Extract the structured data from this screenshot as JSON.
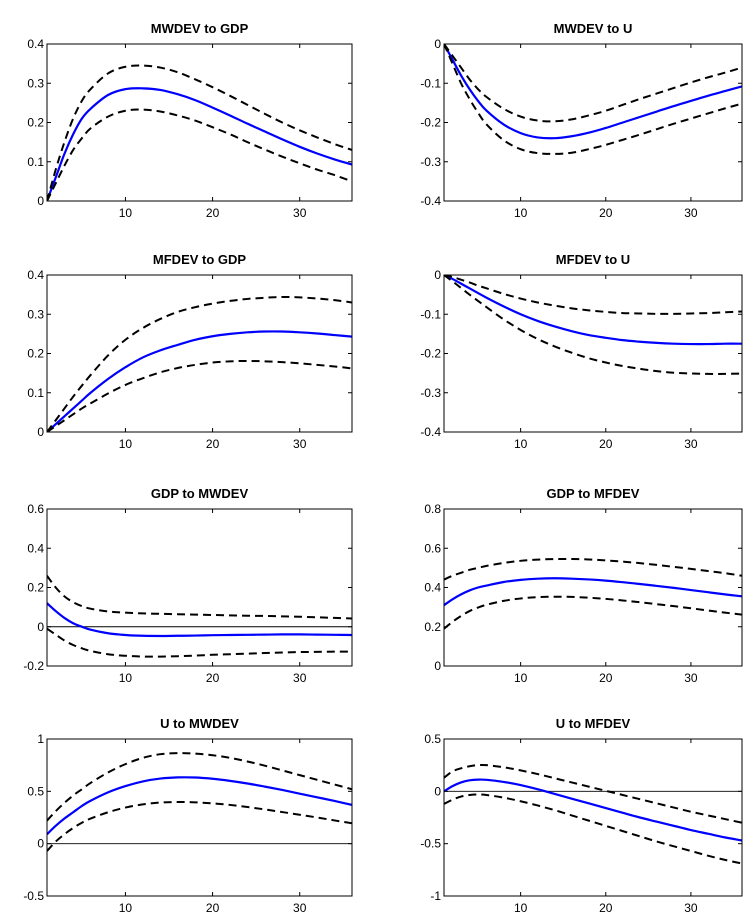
{
  "chart_data": [
    {
      "type": "line",
      "title": "MWDEV to GDP",
      "xlim": [
        1,
        36
      ],
      "ylim": [
        0,
        0.4
      ],
      "yticks": [
        0,
        0.1,
        0.2,
        0.3,
        0.4
      ],
      "yticklabels": [
        "0",
        "0.1",
        "0.2",
        "0.3",
        "0.4"
      ],
      "xticks": [
        10,
        20,
        30
      ],
      "xticklabels": [
        "10",
        "20",
        "30"
      ],
      "zero_line": false,
      "x": [
        1,
        2,
        3,
        4,
        5,
        6,
        8,
        10,
        12,
        14,
        16,
        18,
        20,
        22,
        24,
        26,
        28,
        30,
        32,
        34,
        36
      ],
      "series": [
        {
          "role": "estimate",
          "color": "#0000ff",
          "dash": false,
          "values": [
            0.0,
            0.06,
            0.12,
            0.17,
            0.21,
            0.235,
            0.27,
            0.285,
            0.287,
            0.283,
            0.272,
            0.257,
            0.238,
            0.218,
            0.197,
            0.177,
            0.157,
            0.138,
            0.121,
            0.106,
            0.093
          ]
        },
        {
          "role": "upper band",
          "color": "#000000",
          "dash": true,
          "values": [
            0.0,
            0.08,
            0.15,
            0.21,
            0.255,
            0.285,
            0.325,
            0.342,
            0.345,
            0.34,
            0.328,
            0.31,
            0.29,
            0.268,
            0.245,
            0.222,
            0.2,
            0.18,
            0.162,
            0.145,
            0.13
          ]
        },
        {
          "role": "lower band",
          "color": "#000000",
          "dash": true,
          "values": [
            0.0,
            0.045,
            0.09,
            0.13,
            0.16,
            0.185,
            0.215,
            0.23,
            0.233,
            0.228,
            0.218,
            0.205,
            0.188,
            0.17,
            0.15,
            0.131,
            0.113,
            0.096,
            0.08,
            0.066,
            0.05
          ]
        }
      ]
    },
    {
      "type": "line",
      "title": "MWDEV to U",
      "xlim": [
        1,
        36
      ],
      "ylim": [
        -0.4,
        0
      ],
      "yticks": [
        -0.4,
        -0.3,
        -0.2,
        -0.1,
        0
      ],
      "yticklabels": [
        "-0.4",
        "-0.3",
        "-0.2",
        "-0.1",
        "0"
      ],
      "xticks": [
        10,
        20,
        30
      ],
      "xticklabels": [
        "10",
        "20",
        "30"
      ],
      "zero_line": false,
      "x": [
        1,
        2,
        3,
        4,
        5,
        6,
        8,
        10,
        12,
        14,
        16,
        18,
        20,
        22,
        24,
        26,
        28,
        30,
        32,
        34,
        36
      ],
      "series": [
        {
          "role": "estimate",
          "color": "#0000ff",
          "dash": false,
          "values": [
            0.0,
            -0.04,
            -0.08,
            -0.115,
            -0.145,
            -0.17,
            -0.205,
            -0.227,
            -0.238,
            -0.24,
            -0.235,
            -0.226,
            -0.214,
            -0.2,
            -0.186,
            -0.172,
            -0.158,
            -0.145,
            -0.132,
            -0.12,
            -0.108
          ]
        },
        {
          "role": "upper band",
          "color": "#000000",
          "dash": true,
          "values": [
            0.0,
            -0.03,
            -0.06,
            -0.09,
            -0.115,
            -0.135,
            -0.165,
            -0.185,
            -0.195,
            -0.197,
            -0.192,
            -0.182,
            -0.17,
            -0.155,
            -0.14,
            -0.126,
            -0.112,
            -0.098,
            -0.085,
            -0.073,
            -0.06
          ]
        },
        {
          "role": "lower band",
          "color": "#000000",
          "dash": true,
          "values": [
            0.0,
            -0.05,
            -0.1,
            -0.14,
            -0.175,
            -0.205,
            -0.245,
            -0.268,
            -0.278,
            -0.28,
            -0.277,
            -0.268,
            -0.257,
            -0.244,
            -0.231,
            -0.217,
            -0.203,
            -0.19,
            -0.177,
            -0.164,
            -0.152
          ]
        }
      ]
    },
    {
      "type": "line",
      "title": "MFDEV to GDP",
      "xlim": [
        1,
        36
      ],
      "ylim": [
        0,
        0.4
      ],
      "yticks": [
        0,
        0.1,
        0.2,
        0.3,
        0.4
      ],
      "yticklabels": [
        "0",
        "0.1",
        "0.2",
        "0.3",
        "0.4"
      ],
      "xticks": [
        10,
        20,
        30
      ],
      "xticklabels": [
        "10",
        "20",
        "30"
      ],
      "zero_line": false,
      "x": [
        1,
        2,
        3,
        4,
        5,
        6,
        8,
        10,
        12,
        14,
        16,
        18,
        20,
        22,
        24,
        26,
        28,
        30,
        32,
        34,
        36
      ],
      "series": [
        {
          "role": "estimate",
          "color": "#0000ff",
          "dash": false,
          "values": [
            0.0,
            0.02,
            0.04,
            0.06,
            0.08,
            0.1,
            0.135,
            0.165,
            0.19,
            0.208,
            0.222,
            0.235,
            0.244,
            0.25,
            0.254,
            0.256,
            0.256,
            0.254,
            0.251,
            0.247,
            0.243
          ]
        },
        {
          "role": "upper band",
          "color": "#000000",
          "dash": true,
          "values": [
            0.0,
            0.03,
            0.06,
            0.09,
            0.118,
            0.145,
            0.195,
            0.235,
            0.265,
            0.288,
            0.306,
            0.318,
            0.327,
            0.334,
            0.339,
            0.342,
            0.344,
            0.343,
            0.34,
            0.336,
            0.33
          ]
        },
        {
          "role": "lower band",
          "color": "#000000",
          "dash": true,
          "values": [
            0.0,
            0.015,
            0.03,
            0.045,
            0.06,
            0.073,
            0.098,
            0.12,
            0.137,
            0.152,
            0.163,
            0.171,
            0.177,
            0.18,
            0.181,
            0.18,
            0.178,
            0.175,
            0.171,
            0.167,
            0.162
          ]
        }
      ]
    },
    {
      "type": "line",
      "title": "MFDEV to U",
      "xlim": [
        1,
        36
      ],
      "ylim": [
        -0.4,
        0
      ],
      "yticks": [
        -0.4,
        -0.3,
        -0.2,
        -0.1,
        0
      ],
      "yticklabels": [
        "-0.4",
        "-0.3",
        "-0.2",
        "-0.1",
        "0"
      ],
      "xticks": [
        10,
        20,
        30
      ],
      "xticklabels": [
        "10",
        "20",
        "30"
      ],
      "zero_line": false,
      "x": [
        1,
        2,
        3,
        4,
        5,
        6,
        8,
        10,
        12,
        14,
        16,
        18,
        20,
        22,
        24,
        26,
        28,
        30,
        32,
        34,
        36
      ],
      "series": [
        {
          "role": "estimate",
          "color": "#0000ff",
          "dash": false,
          "values": [
            0.0,
            -0.01,
            -0.022,
            -0.034,
            -0.046,
            -0.058,
            -0.08,
            -0.1,
            -0.117,
            -0.131,
            -0.143,
            -0.153,
            -0.16,
            -0.166,
            -0.17,
            -0.173,
            -0.175,
            -0.176,
            -0.176,
            -0.175,
            -0.175
          ]
        },
        {
          "role": "upper band",
          "color": "#000000",
          "dash": true,
          "values": [
            0.0,
            -0.005,
            -0.012,
            -0.019,
            -0.027,
            -0.034,
            -0.048,
            -0.06,
            -0.07,
            -0.078,
            -0.085,
            -0.09,
            -0.094,
            -0.097,
            -0.098,
            -0.099,
            -0.099,
            -0.098,
            -0.097,
            -0.095,
            -0.093
          ]
        },
        {
          "role": "lower band",
          "color": "#000000",
          "dash": true,
          "values": [
            0.0,
            -0.016,
            -0.033,
            -0.05,
            -0.066,
            -0.082,
            -0.113,
            -0.14,
            -0.163,
            -0.182,
            -0.198,
            -0.212,
            -0.223,
            -0.232,
            -0.239,
            -0.245,
            -0.249,
            -0.251,
            -0.252,
            -0.252,
            -0.251
          ]
        }
      ]
    },
    {
      "type": "line",
      "title": "GDP to MWDEV",
      "xlim": [
        1,
        36
      ],
      "ylim": [
        -0.2,
        0.6
      ],
      "yticks": [
        -0.2,
        0,
        0.2,
        0.4,
        0.6
      ],
      "yticklabels": [
        "-0.2",
        "0",
        "0.2",
        "0.4",
        "0.6"
      ],
      "xticks": [
        10,
        20,
        30
      ],
      "xticklabels": [
        "10",
        "20",
        "30"
      ],
      "zero_line": true,
      "x": [
        1,
        2,
        3,
        4,
        5,
        6,
        8,
        10,
        12,
        14,
        16,
        18,
        20,
        22,
        24,
        26,
        28,
        30,
        32,
        34,
        36
      ],
      "series": [
        {
          "role": "estimate",
          "color": "#0000ff",
          "dash": false,
          "values": [
            0.12,
            0.08,
            0.045,
            0.018,
            0.0,
            -0.015,
            -0.033,
            -0.042,
            -0.046,
            -0.047,
            -0.046,
            -0.045,
            -0.043,
            -0.042,
            -0.041,
            -0.04,
            -0.039,
            -0.039,
            -0.04,
            -0.041,
            -0.042
          ]
        },
        {
          "role": "upper band",
          "color": "#000000",
          "dash": true,
          "values": [
            0.26,
            0.2,
            0.155,
            0.125,
            0.105,
            0.092,
            0.078,
            0.072,
            0.068,
            0.066,
            0.064,
            0.062,
            0.06,
            0.058,
            0.056,
            0.055,
            0.053,
            0.051,
            0.048,
            0.045,
            0.042
          ]
        },
        {
          "role": "lower band",
          "color": "#000000",
          "dash": true,
          "values": [
            -0.01,
            -0.04,
            -0.07,
            -0.093,
            -0.11,
            -0.123,
            -0.14,
            -0.148,
            -0.152,
            -0.152,
            -0.15,
            -0.147,
            -0.143,
            -0.14,
            -0.137,
            -0.134,
            -0.131,
            -0.129,
            -0.128,
            -0.127,
            -0.127
          ]
        }
      ]
    },
    {
      "type": "line",
      "title": "GDP to MFDEV",
      "xlim": [
        1,
        36
      ],
      "ylim": [
        0,
        0.8
      ],
      "yticks": [
        0,
        0.2,
        0.4,
        0.6,
        0.8
      ],
      "yticklabels": [
        "0",
        "0.2",
        "0.4",
        "0.6",
        "0.8"
      ],
      "xticks": [
        10,
        20,
        30
      ],
      "xticklabels": [
        "10",
        "20",
        "30"
      ],
      "zero_line": false,
      "x": [
        1,
        2,
        3,
        4,
        5,
        6,
        8,
        10,
        12,
        14,
        16,
        18,
        20,
        22,
        24,
        26,
        28,
        30,
        32,
        34,
        36
      ],
      "series": [
        {
          "role": "estimate",
          "color": "#0000ff",
          "dash": false,
          "values": [
            0.31,
            0.34,
            0.365,
            0.385,
            0.4,
            0.41,
            0.428,
            0.439,
            0.445,
            0.447,
            0.445,
            0.441,
            0.435,
            0.427,
            0.418,
            0.408,
            0.398,
            0.387,
            0.376,
            0.365,
            0.355
          ]
        },
        {
          "role": "upper band",
          "color": "#000000",
          "dash": true,
          "values": [
            0.44,
            0.46,
            0.475,
            0.49,
            0.5,
            0.51,
            0.525,
            0.536,
            0.542,
            0.545,
            0.545,
            0.543,
            0.538,
            0.532,
            0.524,
            0.515,
            0.505,
            0.495,
            0.484,
            0.473,
            0.46
          ]
        },
        {
          "role": "lower band",
          "color": "#000000",
          "dash": true,
          "values": [
            0.19,
            0.225,
            0.255,
            0.28,
            0.298,
            0.312,
            0.332,
            0.344,
            0.351,
            0.353,
            0.352,
            0.348,
            0.342,
            0.334,
            0.325,
            0.315,
            0.305,
            0.294,
            0.283,
            0.272,
            0.262
          ]
        }
      ]
    },
    {
      "type": "line",
      "title": "U to MWDEV",
      "xlim": [
        1,
        36
      ],
      "ylim": [
        -0.5,
        1
      ],
      "yticks": [
        -0.5,
        0,
        0.5,
        1
      ],
      "yticklabels": [
        "-0.5",
        "0",
        "0.5",
        "1"
      ],
      "xticks": [
        10,
        20,
        30
      ],
      "xticklabels": [
        "10",
        "20",
        "30"
      ],
      "zero_line": true,
      "x": [
        1,
        2,
        3,
        4,
        5,
        6,
        8,
        10,
        12,
        14,
        16,
        18,
        20,
        22,
        24,
        26,
        28,
        30,
        32,
        34,
        36
      ],
      "series": [
        {
          "role": "estimate",
          "color": "#0000ff",
          "dash": false,
          "values": [
            0.09,
            0.17,
            0.24,
            0.3,
            0.36,
            0.41,
            0.49,
            0.55,
            0.595,
            0.622,
            0.633,
            0.632,
            0.62,
            0.6,
            0.575,
            0.545,
            0.513,
            0.478,
            0.443,
            0.408,
            0.37
          ]
        },
        {
          "role": "upper band",
          "color": "#000000",
          "dash": true,
          "values": [
            0.22,
            0.31,
            0.39,
            0.46,
            0.52,
            0.58,
            0.68,
            0.76,
            0.82,
            0.855,
            0.865,
            0.86,
            0.845,
            0.82,
            0.785,
            0.745,
            0.7,
            0.655,
            0.61,
            0.565,
            0.52
          ]
        },
        {
          "role": "lower band",
          "color": "#000000",
          "dash": true,
          "values": [
            -0.07,
            0.02,
            0.09,
            0.15,
            0.2,
            0.24,
            0.3,
            0.345,
            0.375,
            0.393,
            0.398,
            0.395,
            0.385,
            0.37,
            0.35,
            0.327,
            0.302,
            0.276,
            0.25,
            0.222,
            0.195
          ]
        }
      ]
    },
    {
      "type": "line",
      "title": "U to MFDEV",
      "xlim": [
        1,
        36
      ],
      "ylim": [
        -1,
        0.5
      ],
      "yticks": [
        -1,
        -0.5,
        0,
        0.5
      ],
      "yticklabels": [
        "-1",
        "-0.5",
        "0",
        "0.5"
      ],
      "xticks": [
        10,
        20,
        30
      ],
      "xticklabels": [
        "10",
        "20",
        "30"
      ],
      "zero_line": true,
      "x": [
        1,
        2,
        3,
        4,
        5,
        6,
        8,
        10,
        12,
        14,
        16,
        18,
        20,
        22,
        24,
        26,
        28,
        30,
        32,
        34,
        36
      ],
      "series": [
        {
          "role": "estimate",
          "color": "#0000ff",
          "dash": false,
          "values": [
            0.0,
            0.05,
            0.085,
            0.105,
            0.112,
            0.11,
            0.09,
            0.06,
            0.02,
            -0.025,
            -0.07,
            -0.115,
            -0.16,
            -0.205,
            -0.25,
            -0.29,
            -0.33,
            -0.37,
            -0.405,
            -0.44,
            -0.47
          ]
        },
        {
          "role": "upper band",
          "color": "#000000",
          "dash": true,
          "values": [
            0.13,
            0.19,
            0.22,
            0.24,
            0.25,
            0.25,
            0.23,
            0.2,
            0.165,
            0.125,
            0.085,
            0.045,
            0.005,
            -0.035,
            -0.075,
            -0.115,
            -0.155,
            -0.195,
            -0.23,
            -0.265,
            -0.3
          ]
        },
        {
          "role": "lower band",
          "color": "#000000",
          "dash": true,
          "values": [
            -0.12,
            -0.08,
            -0.05,
            -0.035,
            -0.03,
            -0.035,
            -0.06,
            -0.095,
            -0.135,
            -0.18,
            -0.23,
            -0.28,
            -0.33,
            -0.38,
            -0.43,
            -0.48,
            -0.525,
            -0.57,
            -0.615,
            -0.655,
            -0.69
          ]
        }
      ]
    }
  ]
}
